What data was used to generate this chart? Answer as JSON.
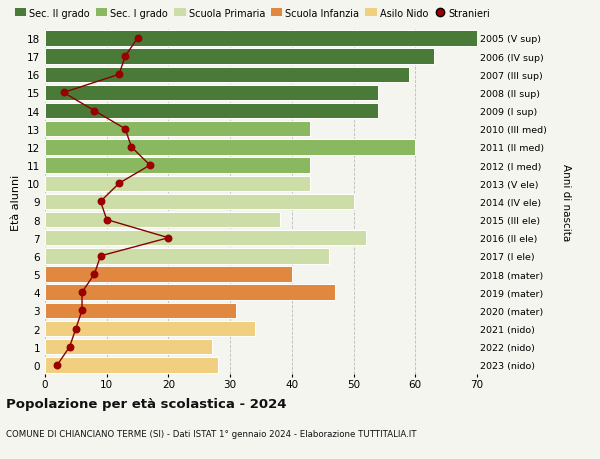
{
  "ages": [
    0,
    1,
    2,
    3,
    4,
    5,
    6,
    7,
    8,
    9,
    10,
    11,
    12,
    13,
    14,
    15,
    16,
    17,
    18
  ],
  "right_labels": [
    "2023 (nido)",
    "2022 (nido)",
    "2021 (nido)",
    "2020 (mater)",
    "2019 (mater)",
    "2018 (mater)",
    "2017 (I ele)",
    "2016 (II ele)",
    "2015 (III ele)",
    "2014 (IV ele)",
    "2013 (V ele)",
    "2012 (I med)",
    "2011 (II med)",
    "2010 (III med)",
    "2009 (I sup)",
    "2008 (II sup)",
    "2007 (III sup)",
    "2006 (IV sup)",
    "2005 (V sup)"
  ],
  "bar_values": [
    28,
    27,
    34,
    31,
    47,
    40,
    46,
    52,
    38,
    50,
    43,
    43,
    60,
    43,
    54,
    54,
    59,
    63,
    70
  ],
  "stranieri_values": [
    2,
    4,
    5,
    6,
    6,
    8,
    9,
    20,
    10,
    9,
    12,
    17,
    14,
    13,
    8,
    3,
    12,
    13,
    15
  ],
  "bar_colors": [
    "#f0d080",
    "#f0d080",
    "#f0d080",
    "#e08840",
    "#e08840",
    "#e08840",
    "#ccdda8",
    "#ccdda8",
    "#ccdda8",
    "#ccdda8",
    "#ccdda8",
    "#8ab860",
    "#8ab860",
    "#8ab860",
    "#4a7a38",
    "#4a7a38",
    "#4a7a38",
    "#4a7a38",
    "#4a7a38"
  ],
  "legend_labels": [
    "Sec. II grado",
    "Sec. I grado",
    "Scuola Primaria",
    "Scuola Infanzia",
    "Asilo Nido",
    "Stranieri"
  ],
  "legend_colors": [
    "#4a7a38",
    "#8ab860",
    "#ccdda8",
    "#e08840",
    "#f0d080",
    "#990000"
  ],
  "ylabel": "Età alunni",
  "right_ylabel": "Anni di nascita",
  "title": "Popolazione per età scolastica - 2024",
  "subtitle": "COMUNE DI CHIANCIANO TERME (SI) - Dati ISTAT 1° gennaio 2024 - Elaborazione TUTTITALIA.IT",
  "xlim": [
    0,
    70
  ],
  "stranieri_color": "#990000",
  "line_color": "#880000",
  "background_color": "#f5f5f0"
}
